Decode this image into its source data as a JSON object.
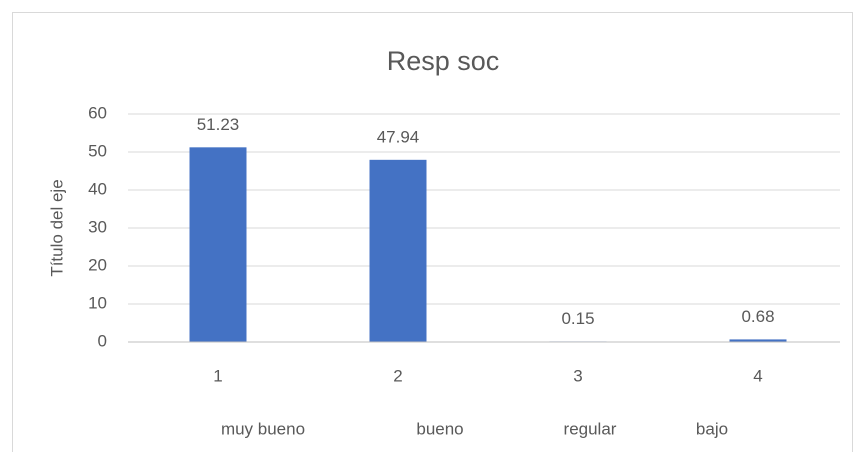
{
  "chart_data": {
    "type": "bar",
    "title": "Resp soc",
    "y_label": "Título del eje",
    "categories": [
      "1",
      "2",
      "3",
      "4"
    ],
    "values": [
      51.23,
      47.94,
      0.15,
      0.68
    ],
    "color": "#4472c4",
    "ylim": [
      0,
      60
    ],
    "yticks": [
      0,
      10,
      20,
      30,
      40,
      50,
      60
    ],
    "grid": true,
    "annotations": [
      "muy bueno",
      "bueno",
      "regular",
      "bajo"
    ]
  }
}
